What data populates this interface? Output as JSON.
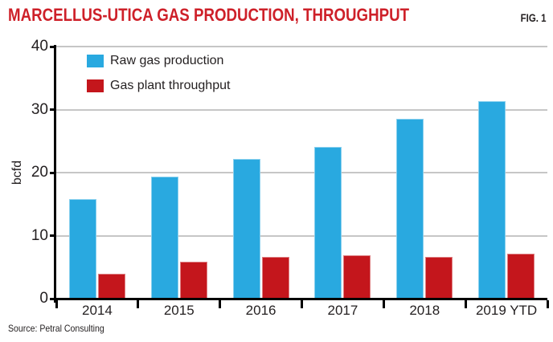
{
  "header": {
    "title": "MARCELLUS-UTICA GAS PRODUCTION, THROUGHPUT",
    "figure_label": "FIG. 1"
  },
  "footer": {
    "source": "Source: Petral Consulting"
  },
  "colors": {
    "title_red": "#CE2029",
    "raw_gas_blue": "#29A9E0",
    "throughput_red": "#C4161C",
    "gridline_gray": "#C6C6C6",
    "axis_black": "#000000",
    "text_dark": "#231F20"
  },
  "chart_data": {
    "type": "bar",
    "title": "MARCELLUS-UTICA GAS PRODUCTION, THROUGHPUT",
    "xlabel": "",
    "ylabel": "bcfd",
    "ylim": [
      0,
      40
    ],
    "yticks": [
      0,
      10,
      20,
      30,
      40
    ],
    "grid": true,
    "legend_position": "upper-left-inside",
    "categories": [
      "2014",
      "2015",
      "2016",
      "2017",
      "2018",
      "2019 YTD"
    ],
    "series": [
      {
        "name": "Raw gas production",
        "color": "#29A9E0",
        "values": [
          15.8,
          19.3,
          22.2,
          24.1,
          28.5,
          31.3
        ]
      },
      {
        "name": "Gas plant throughput",
        "color": "#C4161C",
        "values": [
          3.9,
          5.8,
          6.6,
          6.9,
          6.6,
          7.1
        ]
      }
    ]
  }
}
